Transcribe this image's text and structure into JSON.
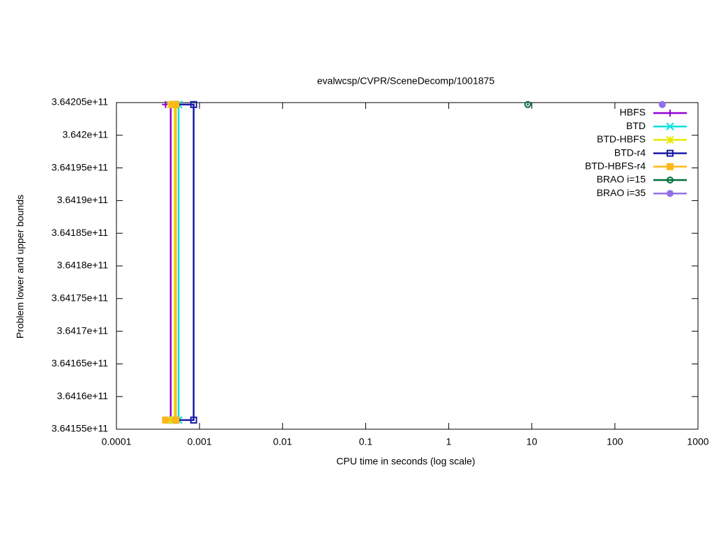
{
  "chart_data": {
    "type": "line",
    "title": "evalwcsp/CVPR/SceneDecomp/1001875",
    "x_label": "CPU time in seconds (log scale)",
    "y_label": "Problem lower and upper bounds",
    "x_log": true,
    "xlim": [
      0.0001,
      1000
    ],
    "xticks": [
      0.0001,
      0.001,
      0.01,
      0.1,
      1,
      10,
      100,
      1000
    ],
    "ylim": [
      364155000000,
      364205000000
    ],
    "yticks": [
      {
        "value": 364155000000,
        "label": "3.64155e+11"
      },
      {
        "value": 364160000000,
        "label": "3.6416e+11"
      },
      {
        "value": 364165000000,
        "label": "3.64165e+11"
      },
      {
        "value": 364170000000,
        "label": "3.6417e+11"
      },
      {
        "value": 364175000000,
        "label": "3.64175e+11"
      },
      {
        "value": 364180000000,
        "label": "3.6418e+11"
      },
      {
        "value": 364185000000,
        "label": "3.64185e+11"
      },
      {
        "value": 364190000000,
        "label": "3.6419e+11"
      },
      {
        "value": 364195000000,
        "label": "3.64195e+11"
      },
      {
        "value": 364200000000,
        "label": "3.642e+11"
      },
      {
        "value": 364205000000,
        "label": "3.64205e+11"
      }
    ],
    "legend": "top-right",
    "series": [
      {
        "name": "HBFS",
        "color": "#9400d3",
        "marker": "plus",
        "x": [
          0.00039,
          0.00045,
          0.00045,
          0.00039
        ],
        "values": [
          364204700000,
          364204700000,
          364156400000,
          364156400000
        ]
      },
      {
        "name": "BTD",
        "color": "#00e0e0",
        "marker": "cross",
        "x": [
          0.00048,
          0.00056,
          0.00056,
          0.00048
        ],
        "values": [
          364204700000,
          364204700000,
          364156400000,
          364156400000
        ]
      },
      {
        "name": "BTD-HBFS",
        "color": "#e8e800",
        "marker": "star",
        "x": [
          0.00045,
          0.0005,
          0.0005,
          0.00045
        ],
        "values": [
          364204700000,
          364204700000,
          364156400000,
          364156400000
        ]
      },
      {
        "name": "BTD-r4",
        "color": "#1a1aa8",
        "marker": "box",
        "x": [
          0.00052,
          0.00085,
          0.00085,
          0.00052
        ],
        "values": [
          364204700000,
          364204700000,
          364156400000,
          364156400000
        ]
      },
      {
        "name": "BTD-HBFS-r4",
        "color": "#ffb818",
        "marker": "fbox",
        "x": [
          0.00047,
          0.00052,
          0.00052,
          0.00039
        ],
        "values": [
          364204700000,
          364204700000,
          364156400000,
          364156400000
        ]
      },
      {
        "name": "BRAO i=15",
        "color": "#006f3a",
        "marker": "ocircle",
        "x": [
          8.95
        ],
        "values": [
          364204700000
        ]
      },
      {
        "name": "BRAO i=35",
        "color": "#9370e8",
        "marker": "fcircle",
        "x": [
          372
        ],
        "values": [
          364204700000
        ]
      }
    ]
  }
}
